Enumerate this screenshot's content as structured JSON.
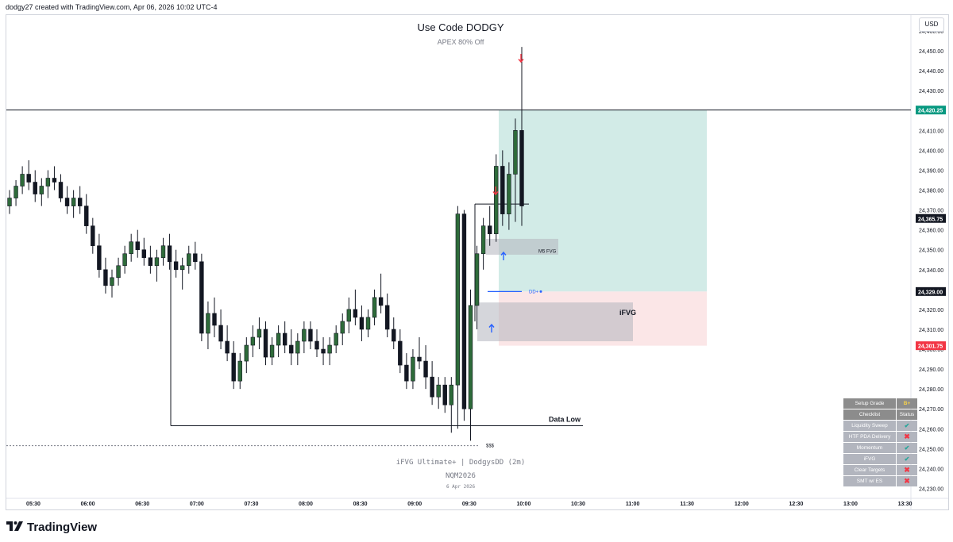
{
  "header": {
    "credit": "dodgy27 created with TradingView.com, Apr 06, 2026 10:02 UTC-4"
  },
  "currency": "USD",
  "overlay": {
    "title": "Use Code DODGY",
    "subtitle": "APEX 80% Off",
    "watermark_indicator": "iFVG Ultimate+ | DodgysDD (2m)",
    "watermark_symbol": "NQM2026",
    "watermark_date": "6 Apr 2026"
  },
  "brand": {
    "logo_text": "TradingView",
    "logo_icon": "tradingview-logo-icon"
  },
  "colors": {
    "up": "#26a69a",
    "down": "#f23645",
    "candle_up_body": "#2e6b3a",
    "candle_down_body": "#131722",
    "target_zone": "#d2ebe7",
    "stop_zone": "#fbe6e7",
    "fvg_box": "#b2b5be",
    "dd_line": "#2962ff",
    "ref_line": "#131722"
  },
  "chart_data": {
    "type": "candlestick",
    "y_axis": {
      "range": [
        24225,
        24468
      ],
      "ticks": [
        "24,460.00",
        "24,450.00",
        "24,440.00",
        "24,430.00",
        "24,420.00",
        "24,410.00",
        "24,400.00",
        "24,390.00",
        "24,380.00",
        "24,370.00",
        "24,360.00",
        "24,350.00",
        "24,340.00",
        "24,330.00",
        "24,320.00",
        "24,310.00",
        "24,300.00",
        "24,290.00",
        "24,280.00",
        "24,270.00",
        "24,260.00",
        "24,250.00",
        "24,240.00",
        "24,230.00"
      ]
    },
    "x_axis": {
      "labels": [
        "05:30",
        "06:00",
        "06:30",
        "07:00",
        "07:30",
        "08:00",
        "08:30",
        "09:00",
        "09:30",
        "10:00",
        "10:30",
        "11:00",
        "11:30",
        "12:00",
        "12:30",
        "13:00",
        "13:30"
      ]
    },
    "price_labels": [
      {
        "text": "24,420.25",
        "value": 24420.25,
        "style": "green"
      },
      {
        "text": "24,365.75",
        "value": 24365.75,
        "style": "dark"
      },
      {
        "text": "24,329.00",
        "value": 24329.0,
        "style": "dark"
      },
      {
        "text": "24,301.75",
        "value": 24301.75,
        "style": "red"
      }
    ],
    "levels": [
      {
        "name": "swing-high",
        "value": 24420.25
      },
      {
        "name": "data-low",
        "value": 24261.5,
        "label": "Data Low"
      },
      {
        "name": "sss",
        "value": 24251.5,
        "label": "$$$"
      },
      {
        "name": "dd-plus",
        "value": 24329.0,
        "label": "DD+"
      },
      {
        "name": "mss",
        "value": 24373.0
      }
    ],
    "zones": [
      {
        "name": "target",
        "top": 24420.25,
        "bottom": 24329.0
      },
      {
        "name": "stop",
        "top": 24329.0,
        "bottom": 24301.75
      },
      {
        "name": "ifvg",
        "top": 24323.5,
        "bottom": 24304.0,
        "label": "iFVG"
      },
      {
        "name": "m5-fvg",
        "top": 24355.5,
        "bottom": 24347.5,
        "label": "M5 FVG"
      }
    ],
    "candles": [
      [
        24372,
        24380,
        24368,
        24376
      ],
      [
        24376,
        24385,
        24372,
        24382
      ],
      [
        24382,
        24392,
        24378,
        24388
      ],
      [
        24388,
        24395,
        24380,
        24384
      ],
      [
        24384,
        24390,
        24374,
        24378
      ],
      [
        24378,
        24386,
        24372,
        24382
      ],
      [
        24382,
        24390,
        24376,
        24386
      ],
      [
        24386,
        24392,
        24380,
        24384
      ],
      [
        24384,
        24388,
        24374,
        24376
      ],
      [
        24376,
        24382,
        24368,
        24372
      ],
      [
        24372,
        24380,
        24366,
        24376
      ],
      [
        24376,
        24382,
        24368,
        24372
      ],
      [
        24372,
        24378,
        24358,
        24362
      ],
      [
        24362,
        24366,
        24348,
        24352
      ],
      [
        24352,
        24358,
        24336,
        24340
      ],
      [
        24340,
        24346,
        24328,
        24332
      ],
      [
        24332,
        24340,
        24326,
        24336
      ],
      [
        24336,
        24346,
        24332,
        24342
      ],
      [
        24342,
        24352,
        24338,
        24348
      ],
      [
        24348,
        24358,
        24344,
        24354
      ],
      [
        24354,
        24360,
        24346,
        24350
      ],
      [
        24350,
        24356,
        24342,
        24346
      ],
      [
        24346,
        24352,
        24338,
        24342
      ],
      [
        24342,
        24350,
        24334,
        24346
      ],
      [
        24346,
        24356,
        24342,
        24352
      ],
      [
        24352,
        24358,
        24340,
        24344
      ],
      [
        24344,
        24350,
        24336,
        24340
      ],
      [
        24340,
        24346,
        24330,
        24342
      ],
      [
        24342,
        24352,
        24338,
        24348
      ],
      [
        24348,
        24354,
        24340,
        24344
      ],
      [
        24344,
        24348,
        24304,
        24308
      ],
      [
        24308,
        24324,
        24300,
        24318
      ],
      [
        24318,
        24326,
        24306,
        24312
      ],
      [
        24312,
        24320,
        24300,
        24304
      ],
      [
        24304,
        24312,
        24294,
        24298
      ],
      [
        24298,
        24304,
        24280,
        24284
      ],
      [
        24284,
        24298,
        24280,
        24294
      ],
      [
        24294,
        24306,
        24288,
        24302
      ],
      [
        24302,
        24312,
        24296,
        24306
      ],
      [
        24306,
        24316,
        24300,
        24310
      ],
      [
        24310,
        24314,
        24292,
        24296
      ],
      [
        24296,
        24306,
        24292,
        24302
      ],
      [
        24302,
        24312,
        24296,
        24308
      ],
      [
        24308,
        24314,
        24298,
        24302
      ],
      [
        24302,
        24310,
        24292,
        24298
      ],
      [
        24298,
        24308,
        24292,
        24304
      ],
      [
        24304,
        24314,
        24298,
        24310
      ],
      [
        24310,
        24314,
        24300,
        24304
      ],
      [
        24304,
        24310,
        24296,
        24300
      ],
      [
        24300,
        24306,
        24292,
        24298
      ],
      [
        24298,
        24306,
        24292,
        24302
      ],
      [
        24302,
        24312,
        24298,
        24308
      ],
      [
        24308,
        24318,
        24302,
        24314
      ],
      [
        24314,
        24326,
        24308,
        24320
      ],
      [
        24320,
        24330,
        24312,
        24316
      ],
      [
        24316,
        24322,
        24304,
        24310
      ],
      [
        24310,
        24320,
        24306,
        24316
      ],
      [
        24316,
        24330,
        24312,
        24326
      ],
      [
        24326,
        24338,
        24318,
        24322
      ],
      [
        24322,
        24328,
        24306,
        24310
      ],
      [
        24310,
        24316,
        24300,
        24304
      ],
      [
        24304,
        24310,
        24288,
        24292
      ],
      [
        24292,
        24298,
        24280,
        24284
      ],
      [
        24284,
        24300,
        24280,
        24296
      ],
      [
        24296,
        24306,
        24290,
        24294
      ],
      [
        24294,
        24302,
        24280,
        24286
      ],
      [
        24286,
        24294,
        24272,
        24276
      ],
      [
        24276,
        24286,
        24270,
        24282
      ],
      [
        24282,
        24286,
        24268,
        24272
      ],
      [
        24272,
        24286,
        24258,
        24282
      ],
      [
        24282,
        24372,
        24260,
        24368
      ],
      [
        24368,
        24370,
        24264,
        24270
      ],
      [
        24270,
        24330,
        24254,
        24322
      ],
      [
        24322,
        24352,
        24310,
        24348
      ],
      [
        24348,
        24366,
        24340,
        24362
      ],
      [
        24362,
        24372,
        24352,
        24358
      ],
      [
        24358,
        24398,
        24354,
        24392
      ],
      [
        24392,
        24400,
        24362,
        24368
      ],
      [
        24368,
        24394,
        24360,
        24388
      ],
      [
        24388,
        24416,
        24364,
        24410
      ],
      [
        24410,
        24452,
        24362,
        24372
      ]
    ]
  },
  "checklist": {
    "grade_label": "Setup Grade",
    "grade_value": "B+",
    "col_item": "Checklist",
    "col_status": "Status",
    "items": [
      {
        "label": "Liquidity Sweep",
        "status": "pass"
      },
      {
        "label": "HTF PDA Delivery",
        "status": "fail"
      },
      {
        "label": "Momentum",
        "status": "pass"
      },
      {
        "label": "iFVG",
        "status": "pass"
      },
      {
        "label": "Clear Targets",
        "status": "fail"
      },
      {
        "label": "SMT w/ ES",
        "status": "fail"
      }
    ]
  }
}
